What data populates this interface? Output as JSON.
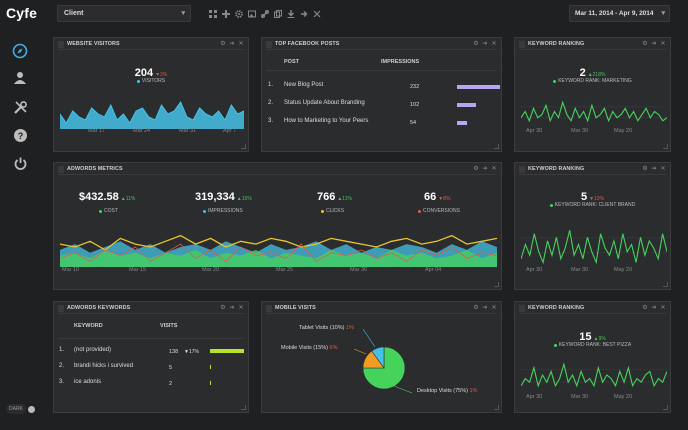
{
  "app": {
    "logo": "Cyfe",
    "dark_label": "DARK"
  },
  "topbar": {
    "client": "Client",
    "date_range": "Mar 11, 2014 - Apr 9, 2014"
  },
  "colors": {
    "blue": "#46c1e6",
    "green": "#46d35b",
    "yellow": "#e8c42f",
    "purple": "#b9a4f2",
    "orange": "#f39c23",
    "lime": "#b7e22a",
    "red": "#e05a47"
  },
  "website_visitors": {
    "title": "Website Visitors",
    "value": "204",
    "change": "▼3%",
    "legend": "VISITORS",
    "x_ticks": [
      "Mar 17",
      "Mar 24",
      "Mar 31",
      "Apr 7"
    ]
  },
  "facebook": {
    "title": "Top Facebook Posts",
    "col_post": "POST",
    "col_impr": "IMPRESSIONS",
    "rows": [
      {
        "num": "1.",
        "post": "New Blog Post",
        "impressions": "232"
      },
      {
        "num": "2.",
        "post": "Status Update About Branding",
        "impressions": "102"
      },
      {
        "num": "3.",
        "post": "How to Marketing to Your Peers",
        "impressions": "54"
      }
    ]
  },
  "kr1": {
    "title": "Keyword Ranking",
    "value": "2",
    "change": "▲218%",
    "legend": "KEYWORD RANK: MARKETING",
    "x_ticks": [
      "Apr 30",
      "Mar 30",
      "May 20"
    ]
  },
  "kr2": {
    "title": "Keyword Ranking",
    "value": "5",
    "change": "▼10%",
    "legend": "KEYWORD RANK: CLIENT BRAND",
    "x_ticks": [
      "Apr 30",
      "Mar 30",
      "May 20"
    ]
  },
  "kr3": {
    "title": "Keyword Ranking",
    "value": "15",
    "change": "▲9%",
    "legend": "KEYWORD RANK: BEST PIZZA",
    "x_ticks": [
      "Apr 30",
      "Mar 30",
      "May 20"
    ]
  },
  "adwords_metrics": {
    "title": "Adwords Metrics",
    "metrics": [
      {
        "value": "$432.58",
        "change": "▲11%",
        "label": "COST"
      },
      {
        "value": "319,334",
        "change": "▲15%",
        "label": "IMPRESSIONS"
      },
      {
        "value": "766",
        "change": "▲11%",
        "label": "CLICKS"
      },
      {
        "value": "66",
        "change": "▼8%",
        "label": "CONVERSIONS"
      }
    ],
    "x_ticks": [
      "Mar 10",
      "Mar 15",
      "Mar 20",
      "Mar 25",
      "Mar 30",
      "Apr 04"
    ]
  },
  "adwords_keywords": {
    "title": "Adwords Keywords",
    "col_keyword": "KEYWORD",
    "col_visits": "VISITS",
    "rows": [
      {
        "num": "1.",
        "keyword": "(not provided)",
        "visits": "138",
        "change": "▼17%"
      },
      {
        "num": "2.",
        "keyword": "brandi hicks i survived",
        "visits": "5",
        "change": ""
      },
      {
        "num": "3.",
        "keyword": "ice adonis",
        "visits": "2",
        "change": ""
      }
    ]
  },
  "mobile_visits": {
    "title": "Mobile Visits",
    "tablet": {
      "label": "Tablet Visits (10%)",
      "change": "1%"
    },
    "mobile": {
      "label": "Mobile Visits (15%)",
      "change": "6%"
    },
    "desktop": {
      "label": "Desktop Visits (75%)",
      "change": "1%"
    }
  },
  "chart_data": [
    {
      "type": "area",
      "title": "Website Visitors",
      "x_ticks": [
        "Mar 17",
        "Mar 24",
        "Mar 31",
        "Apr 7"
      ],
      "series": [
        {
          "name": "Visitors",
          "values": [
            5,
            2,
            6,
            4,
            3,
            7,
            5,
            4,
            8,
            3,
            5,
            2,
            6,
            7,
            4,
            3,
            8,
            5,
            6,
            9,
            4,
            3,
            7,
            5,
            4,
            6,
            3,
            8,
            5,
            6
          ]
        }
      ],
      "ylim": [
        0,
        12
      ]
    },
    {
      "type": "bar",
      "title": "Top Facebook Posts",
      "categories": [
        "New Blog Post",
        "Status Update About Branding",
        "How to Marketing to Your Peers"
      ],
      "values": [
        232,
        102,
        54
      ]
    },
    {
      "type": "line",
      "title": "Keyword Rank: Marketing",
      "x_ticks": [
        "Apr 30",
        "Mar 30",
        "May 20"
      ],
      "series": [
        {
          "name": "Rank",
          "values": [
            3,
            5,
            2,
            6,
            3,
            4,
            7,
            2,
            5,
            3,
            8,
            4,
            2,
            6,
            3,
            5,
            2,
            7,
            3,
            4,
            6,
            2,
            5,
            3,
            4,
            6,
            3,
            5,
            2,
            4,
            6,
            3,
            5,
            4,
            2,
            3
          ]
        }
      ],
      "ylim": [
        0,
        10
      ]
    },
    {
      "type": "line",
      "title": "Keyword Rank: Client Brand",
      "x_ticks": [
        "Apr 30",
        "Mar 30",
        "May 20"
      ],
      "series": [
        {
          "name": "Rank",
          "values": [
            2,
            6,
            3,
            9,
            4,
            1,
            7,
            3,
            8,
            2,
            5,
            10,
            3,
            6,
            2,
            8,
            4,
            1,
            9,
            5,
            3,
            7,
            2,
            9,
            4,
            6,
            1,
            8,
            3,
            7,
            5,
            2,
            9,
            4
          ]
        }
      ],
      "ylim": [
        0,
        12
      ]
    },
    {
      "type": "line",
      "title": "Keyword Rank: Best Pizza",
      "x_ticks": [
        "Apr 30",
        "Mar 30",
        "May 20"
      ],
      "series": [
        {
          "name": "Rank",
          "values": [
            2,
            4,
            3,
            7,
            2,
            5,
            3,
            6,
            2,
            4,
            8,
            3,
            5,
            2,
            6,
            3,
            4,
            2,
            7,
            3,
            5,
            4,
            2,
            6,
            3,
            7,
            2,
            4,
            3,
            5,
            6,
            2,
            4,
            3,
            6
          ]
        }
      ],
      "ylim": [
        0,
        10
      ]
    },
    {
      "type": "area",
      "title": "Adwords Metrics",
      "x_ticks": [
        "Mar 10",
        "Mar 15",
        "Mar 20",
        "Mar 25",
        "Mar 30",
        "Apr 04"
      ],
      "series": [
        {
          "name": "Impressions",
          "values": [
            6,
            8,
            5,
            7,
            9,
            6,
            8,
            5,
            7,
            8,
            6,
            9,
            7,
            5,
            8,
            6,
            7,
            9,
            6,
            8,
            5,
            7,
            6,
            8,
            7,
            5,
            8,
            6,
            9,
            7
          ]
        },
        {
          "name": "Clicks",
          "values": [
            4,
            5,
            3,
            6,
            4,
            5,
            3,
            5,
            4,
            6,
            3,
            5,
            4,
            6,
            3,
            5,
            4,
            3,
            6,
            4,
            5,
            3,
            6,
            4,
            5,
            3,
            4,
            6,
            3,
            5
          ]
        },
        {
          "name": "Cost",
          "values": [
            8,
            7,
            9,
            6,
            10,
            8,
            7,
            9,
            11,
            8,
            10,
            7,
            9,
            8,
            10,
            9,
            7,
            8,
            10,
            9,
            8,
            7,
            9,
            10,
            8,
            9,
            11,
            8,
            9,
            10
          ]
        },
        {
          "name": "Conversions",
          "values": [
            3,
            5,
            2,
            6,
            4,
            7,
            2,
            5,
            8,
            3,
            6,
            2,
            7,
            4,
            5,
            3,
            8,
            2,
            5,
            4,
            6,
            3,
            5,
            2,
            6,
            4,
            7,
            3,
            5,
            4
          ]
        }
      ],
      "ylim": [
        0,
        14
      ]
    },
    {
      "type": "bar",
      "title": "Adwords Keywords",
      "categories": [
        "(not provided)",
        "brandi hicks i survived",
        "ice adonis"
      ],
      "values": [
        138,
        5,
        2
      ]
    },
    {
      "type": "pie",
      "title": "Mobile Visits",
      "categories": [
        "Desktop Visits",
        "Mobile Visits",
        "Tablet Visits"
      ],
      "values": [
        75,
        15,
        10
      ]
    }
  ]
}
